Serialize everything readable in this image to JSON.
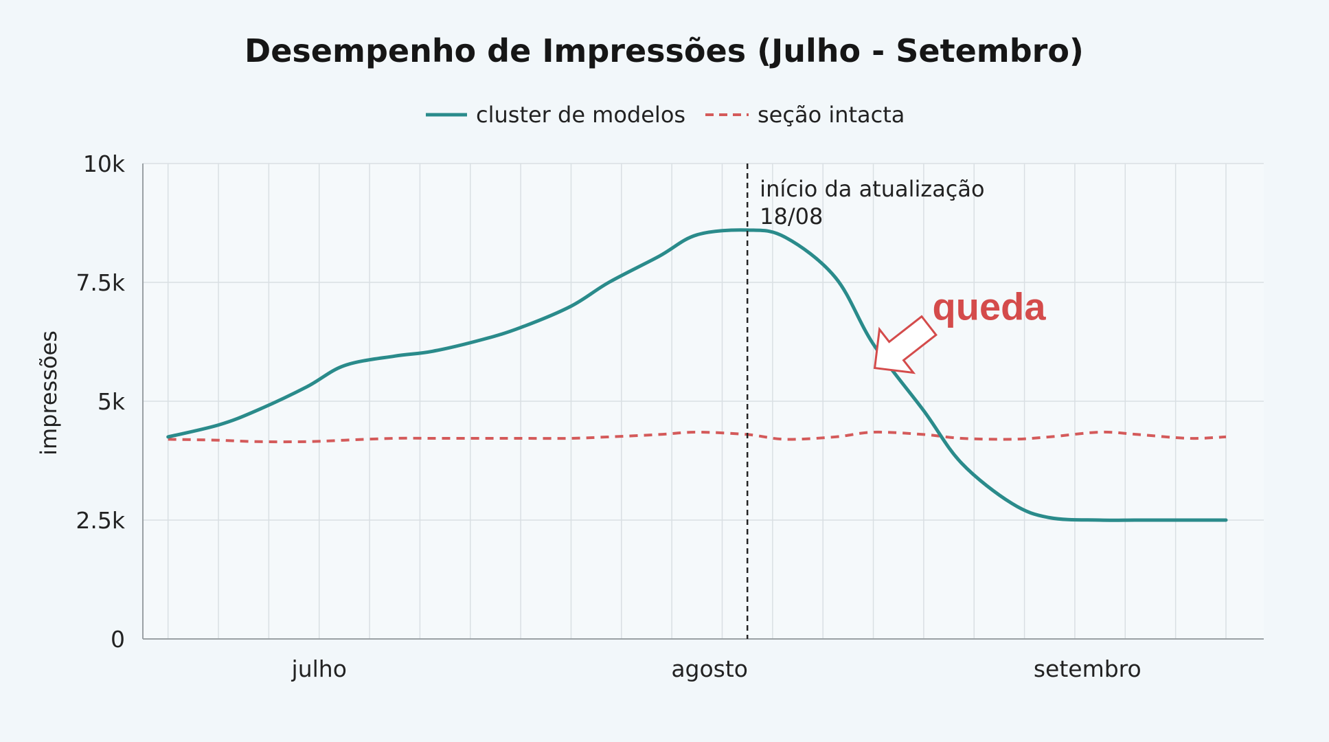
{
  "chart_data": {
    "type": "line",
    "title": "Desempenho de Impressões (Julho - Setembro)",
    "ylabel": "impressões",
    "xlabel": "",
    "ylim": [
      0,
      10000
    ],
    "yticks": [
      {
        "value": 0,
        "label": "0"
      },
      {
        "value": 2500,
        "label": "2.5k"
      },
      {
        "value": 5000,
        "label": "5k"
      },
      {
        "value": 7500,
        "label": "7.5k"
      },
      {
        "value": 10000,
        "label": "10k"
      }
    ],
    "xlim": [
      "2023-07-01",
      "2023-09-28"
    ],
    "month_labels": [
      {
        "label": "julho",
        "date": "2023-07-15"
      },
      {
        "label": "agosto",
        "date": "2023-08-15"
      },
      {
        "label": "setembro",
        "date": "2023-09-14"
      }
    ],
    "grid": true,
    "legend": {
      "position": "top-center",
      "entries": [
        {
          "label": "cluster de modelos",
          "style": "solid",
          "color": "#2a8b8b"
        },
        {
          "label": "seção intacta",
          "style": "dashed",
          "color": "#d45a5a"
        }
      ]
    },
    "series": [
      {
        "name": "cluster de modelos",
        "color": "#2a8b8b",
        "x": [
          "2023-07-03",
          "2023-07-07",
          "2023-07-10",
          "2023-07-14",
          "2023-07-17",
          "2023-07-21",
          "2023-07-24",
          "2023-07-28",
          "2023-07-31",
          "2023-08-04",
          "2023-08-07",
          "2023-08-11",
          "2023-08-14",
          "2023-08-18",
          "2023-08-21",
          "2023-08-25",
          "2023-08-28",
          "2023-09-01",
          "2023-09-04",
          "2023-09-08",
          "2023-09-11",
          "2023-09-15",
          "2023-09-18",
          "2023-09-22",
          "2023-09-25"
        ],
        "y": [
          4250,
          4500,
          4800,
          5300,
          5750,
          5950,
          6050,
          6300,
          6550,
          7000,
          7500,
          8050,
          8500,
          8600,
          8450,
          7600,
          6200,
          4800,
          3700,
          2850,
          2550,
          2500,
          2500,
          2500,
          2500
        ]
      },
      {
        "name": "seção intacta",
        "color": "#d45a5a",
        "x": [
          "2023-07-03",
          "2023-07-07",
          "2023-07-10",
          "2023-07-14",
          "2023-07-17",
          "2023-07-21",
          "2023-07-24",
          "2023-07-28",
          "2023-07-31",
          "2023-08-04",
          "2023-08-07",
          "2023-08-11",
          "2023-08-14",
          "2023-08-18",
          "2023-08-21",
          "2023-08-25",
          "2023-08-28",
          "2023-09-01",
          "2023-09-04",
          "2023-09-08",
          "2023-09-11",
          "2023-09-15",
          "2023-09-18",
          "2023-09-22",
          "2023-09-25"
        ],
        "y": [
          4200,
          4180,
          4150,
          4150,
          4180,
          4220,
          4220,
          4220,
          4220,
          4220,
          4250,
          4300,
          4350,
          4300,
          4200,
          4250,
          4350,
          4300,
          4220,
          4200,
          4250,
          4350,
          4300,
          4220,
          4250
        ]
      }
    ],
    "annotations": [
      {
        "type": "vline",
        "date": "2023-08-18",
        "style": "dashed",
        "color": "#222222",
        "text_lines": [
          "início da atualização",
          "18/08"
        ]
      },
      {
        "type": "callout",
        "text": "queda",
        "color": "#d44b4b",
        "point_date": "2023-08-28",
        "point_value": 5700
      }
    ]
  }
}
